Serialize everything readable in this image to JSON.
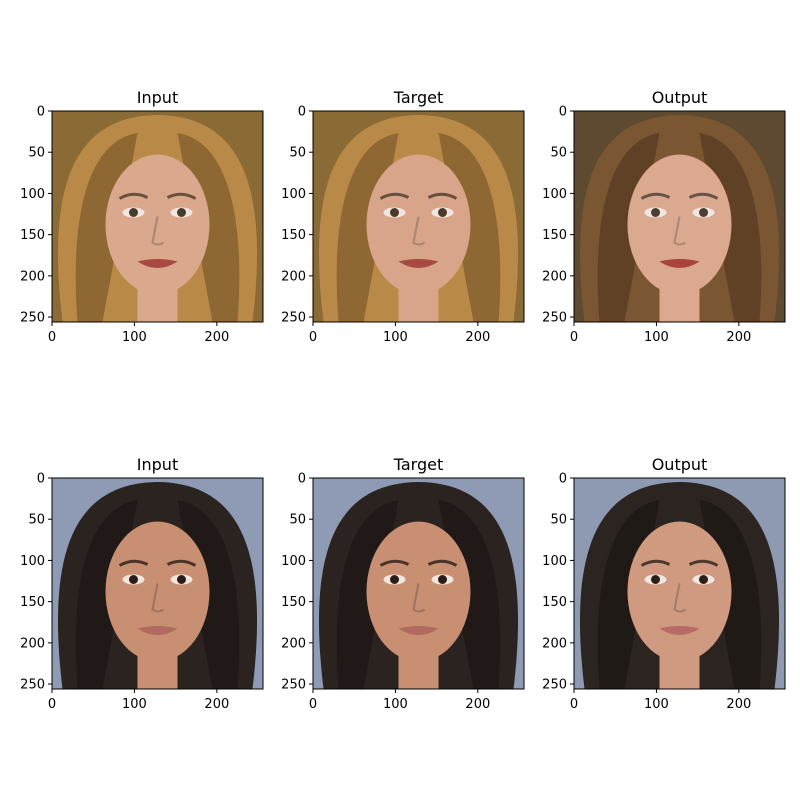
{
  "chart_data": [
    {
      "type": "image",
      "title": "Input",
      "xlim": [
        0,
        256
      ],
      "ylim": [
        256,
        0
      ],
      "xticks": [
        0,
        100,
        200
      ],
      "yticks": [
        0,
        50,
        100,
        150,
        200,
        250
      ],
      "image": {
        "subject": "face-portrait",
        "bg": "#8a6a35",
        "hair": "#b98a47",
        "hair_dark": "#6b4a22",
        "skin": "#d9a88d",
        "lips": "#a84a42",
        "eyes": "#4a3a2a"
      }
    },
    {
      "type": "image",
      "title": "Target",
      "xlim": [
        0,
        256
      ],
      "ylim": [
        256,
        0
      ],
      "xticks": [
        0,
        100,
        200
      ],
      "yticks": [
        0,
        50,
        100,
        150,
        200,
        250
      ],
      "image": {
        "subject": "face-portrait",
        "bg": "#8a6a35",
        "hair": "#b98a47",
        "hair_dark": "#6b4a22",
        "skin": "#d8a58a",
        "lips": "#a84a42",
        "eyes": "#4a3a2a"
      }
    },
    {
      "type": "image",
      "title": "Output",
      "xlim": [
        0,
        256
      ],
      "ylim": [
        256,
        0
      ],
      "xticks": [
        0,
        100,
        200
      ],
      "yticks": [
        0,
        50,
        100,
        150,
        200,
        250
      ],
      "image": {
        "subject": "face-portrait",
        "bg": "#5e4a30",
        "hair": "#7a5632",
        "hair_dark": "#4a321c",
        "skin": "#dba890",
        "lips": "#a8443c",
        "eyes": "#4a3e33"
      }
    },
    {
      "type": "image",
      "title": "Input",
      "xlim": [
        0,
        256
      ],
      "ylim": [
        256,
        0
      ],
      "xticks": [
        0,
        100,
        200
      ],
      "yticks": [
        0,
        50,
        100,
        150,
        200,
        250
      ],
      "image": {
        "subject": "face-portrait",
        "bg": "#8f9bb5",
        "hair": "#2a2320",
        "hair_dark": "#171210",
        "skin": "#c98f73",
        "lips": "#b06a60",
        "eyes": "#2a1d17"
      }
    },
    {
      "type": "image",
      "title": "Target",
      "xlim": [
        0,
        256
      ],
      "ylim": [
        256,
        0
      ],
      "xticks": [
        0,
        100,
        200
      ],
      "yticks": [
        0,
        50,
        100,
        150,
        200,
        250
      ],
      "image": {
        "subject": "face-portrait",
        "bg": "#8f9bb5",
        "hair": "#2a2320",
        "hair_dark": "#171210",
        "skin": "#c98f73",
        "lips": "#b06a60",
        "eyes": "#2a1d17"
      }
    },
    {
      "type": "image",
      "title": "Output",
      "xlim": [
        0,
        256
      ],
      "ylim": [
        256,
        0
      ],
      "xticks": [
        0,
        100,
        200
      ],
      "yticks": [
        0,
        50,
        100,
        150,
        200,
        250
      ],
      "image": {
        "subject": "face-portrait",
        "bg": "#8e99b2",
        "hair": "#2b2421",
        "hair_dark": "#181311",
        "skin": "#cf9a80",
        "lips": "#b86a66",
        "eyes": "#2c1f19"
      }
    }
  ]
}
